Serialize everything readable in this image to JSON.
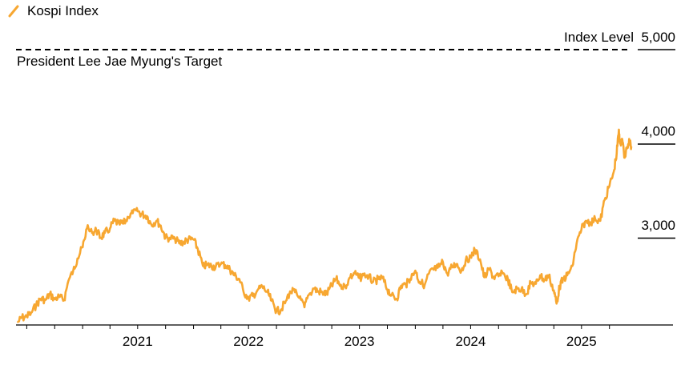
{
  "chart_data": {
    "type": "line",
    "legend": {
      "label": "Kospi Index",
      "color": "#F7A731",
      "position": "top-left"
    },
    "ylabel": "Index Level",
    "y_ticks": [
      {
        "value": 5000,
        "label": "5,000"
      },
      {
        "value": 4000,
        "label": "4,000"
      },
      {
        "value": 3000,
        "label": "3,000"
      }
    ],
    "x_ticks": [
      {
        "value": "2021",
        "label": "2021"
      },
      {
        "value": "2022",
        "label": "2022"
      },
      {
        "value": "2023",
        "label": "2023"
      },
      {
        "value": "2024",
        "label": "2024"
      },
      {
        "value": "2025",
        "label": "2025"
      }
    ],
    "ylim": [
      2200,
      5050
    ],
    "xlim": [
      "2020-06-01",
      "2025-12-20"
    ],
    "annotation": {
      "text": "President Lee Jae Myung's Target",
      "value": 5000
    },
    "series": [
      {
        "name": "Kospi Index",
        "color": "#F7A731",
        "points": [
          [
            "2020-06-01",
            2100
          ],
          [
            "2020-06-15",
            2150
          ],
          [
            "2020-07-01",
            2160
          ],
          [
            "2020-07-15",
            2200
          ],
          [
            "2020-08-01",
            2280
          ],
          [
            "2020-08-15",
            2350
          ],
          [
            "2020-09-01",
            2340
          ],
          [
            "2020-09-15",
            2400
          ],
          [
            "2020-10-01",
            2350
          ],
          [
            "2020-10-15",
            2370
          ],
          [
            "2020-11-01",
            2340
          ],
          [
            "2020-11-15",
            2540
          ],
          [
            "2020-12-01",
            2650
          ],
          [
            "2020-12-15",
            2780
          ],
          [
            "2021-01-01",
            2900
          ],
          [
            "2021-01-15",
            3100
          ],
          [
            "2021-02-01",
            3050
          ],
          [
            "2021-02-15",
            3080
          ],
          [
            "2021-03-01",
            3000
          ],
          [
            "2021-03-15",
            3050
          ],
          [
            "2021-04-01",
            3100
          ],
          [
            "2021-04-15",
            3180
          ],
          [
            "2021-05-01",
            3150
          ],
          [
            "2021-05-15",
            3150
          ],
          [
            "2021-06-01",
            3220
          ],
          [
            "2021-06-15",
            3260
          ],
          [
            "2021-07-01",
            3280
          ],
          [
            "2021-07-15",
            3250
          ],
          [
            "2021-08-01",
            3230
          ],
          [
            "2021-08-15",
            3140
          ],
          [
            "2021-09-01",
            3180
          ],
          [
            "2021-09-15",
            3130
          ],
          [
            "2021-10-01",
            3000
          ],
          [
            "2021-10-15",
            3000
          ],
          [
            "2021-11-01",
            2990
          ],
          [
            "2021-11-15",
            2940
          ],
          [
            "2021-12-01",
            2960
          ],
          [
            "2021-12-15",
            2980
          ],
          [
            "2022-01-01",
            2980
          ],
          [
            "2022-01-15",
            2880
          ],
          [
            "2022-02-01",
            2700
          ],
          [
            "2022-02-15",
            2710
          ],
          [
            "2022-03-01",
            2700
          ],
          [
            "2022-03-15",
            2690
          ],
          [
            "2022-04-01",
            2720
          ],
          [
            "2022-04-15",
            2710
          ],
          [
            "2022-05-01",
            2660
          ],
          [
            "2022-05-15",
            2600
          ],
          [
            "2022-06-01",
            2560
          ],
          [
            "2022-06-15",
            2420
          ],
          [
            "2022-07-01",
            2360
          ],
          [
            "2022-07-15",
            2380
          ],
          [
            "2022-08-01",
            2450
          ],
          [
            "2022-08-15",
            2480
          ],
          [
            "2022-09-01",
            2420
          ],
          [
            "2022-09-15",
            2330
          ],
          [
            "2022-10-01",
            2220
          ],
          [
            "2022-10-15",
            2230
          ],
          [
            "2022-11-01",
            2330
          ],
          [
            "2022-11-15",
            2430
          ],
          [
            "2022-12-01",
            2420
          ],
          [
            "2022-12-15",
            2360
          ],
          [
            "2023-01-01",
            2260
          ],
          [
            "2023-01-15",
            2390
          ],
          [
            "2023-02-01",
            2460
          ],
          [
            "2023-02-15",
            2430
          ],
          [
            "2023-03-01",
            2420
          ],
          [
            "2023-03-15",
            2400
          ],
          [
            "2023-04-01",
            2490
          ],
          [
            "2023-04-15",
            2560
          ],
          [
            "2023-05-01",
            2500
          ],
          [
            "2023-05-15",
            2480
          ],
          [
            "2023-06-01",
            2580
          ],
          [
            "2023-06-15",
            2620
          ],
          [
            "2023-07-01",
            2570
          ],
          [
            "2023-07-15",
            2600
          ],
          [
            "2023-08-01",
            2590
          ],
          [
            "2023-08-15",
            2530
          ],
          [
            "2023-09-01",
            2560
          ],
          [
            "2023-09-15",
            2570
          ],
          [
            "2023-10-01",
            2450
          ],
          [
            "2023-10-15",
            2390
          ],
          [
            "2023-11-01",
            2350
          ],
          [
            "2023-11-15",
            2490
          ],
          [
            "2023-12-01",
            2500
          ],
          [
            "2023-12-15",
            2560
          ],
          [
            "2024-01-01",
            2650
          ],
          [
            "2024-01-15",
            2530
          ],
          [
            "2024-02-01",
            2500
          ],
          [
            "2024-02-15",
            2620
          ],
          [
            "2024-03-01",
            2660
          ],
          [
            "2024-03-15",
            2680
          ],
          [
            "2024-04-01",
            2740
          ],
          [
            "2024-04-15",
            2620
          ],
          [
            "2024-05-01",
            2690
          ],
          [
            "2024-05-15",
            2720
          ],
          [
            "2024-06-01",
            2650
          ],
          [
            "2024-06-15",
            2760
          ],
          [
            "2024-07-01",
            2800
          ],
          [
            "2024-07-15",
            2870
          ],
          [
            "2024-08-01",
            2770
          ],
          [
            "2024-08-15",
            2580
          ],
          [
            "2024-09-01",
            2660
          ],
          [
            "2024-09-15",
            2580
          ],
          [
            "2024-10-01",
            2590
          ],
          [
            "2024-10-15",
            2620
          ],
          [
            "2024-11-01",
            2560
          ],
          [
            "2024-11-15",
            2420
          ],
          [
            "2024-12-01",
            2460
          ],
          [
            "2024-12-15",
            2450
          ],
          [
            "2025-01-01",
            2400
          ],
          [
            "2025-01-15",
            2520
          ],
          [
            "2025-02-01",
            2510
          ],
          [
            "2025-02-15",
            2600
          ],
          [
            "2025-03-01",
            2550
          ],
          [
            "2025-03-15",
            2600
          ],
          [
            "2025-04-01",
            2440
          ],
          [
            "2025-04-10",
            2300
          ],
          [
            "2025-04-20",
            2480
          ],
          [
            "2025-05-01",
            2560
          ],
          [
            "2025-05-15",
            2600
          ],
          [
            "2025-06-01",
            2700
          ],
          [
            "2025-06-15",
            2940
          ],
          [
            "2025-07-01",
            3090
          ],
          [
            "2025-07-15",
            3180
          ],
          [
            "2025-08-01",
            3160
          ],
          [
            "2025-08-15",
            3200
          ],
          [
            "2025-09-01",
            3180
          ],
          [
            "2025-09-15",
            3400
          ],
          [
            "2025-10-01",
            3550
          ],
          [
            "2025-10-15",
            3700
          ],
          [
            "2025-10-25",
            3900
          ],
          [
            "2025-11-01",
            4150
          ],
          [
            "2025-11-05",
            4000
          ],
          [
            "2025-11-12",
            4050
          ],
          [
            "2025-11-20",
            3850
          ],
          [
            "2025-11-28",
            3950
          ],
          [
            "2025-12-05",
            4050
          ],
          [
            "2025-12-12",
            3970
          ]
        ]
      }
    ]
  }
}
